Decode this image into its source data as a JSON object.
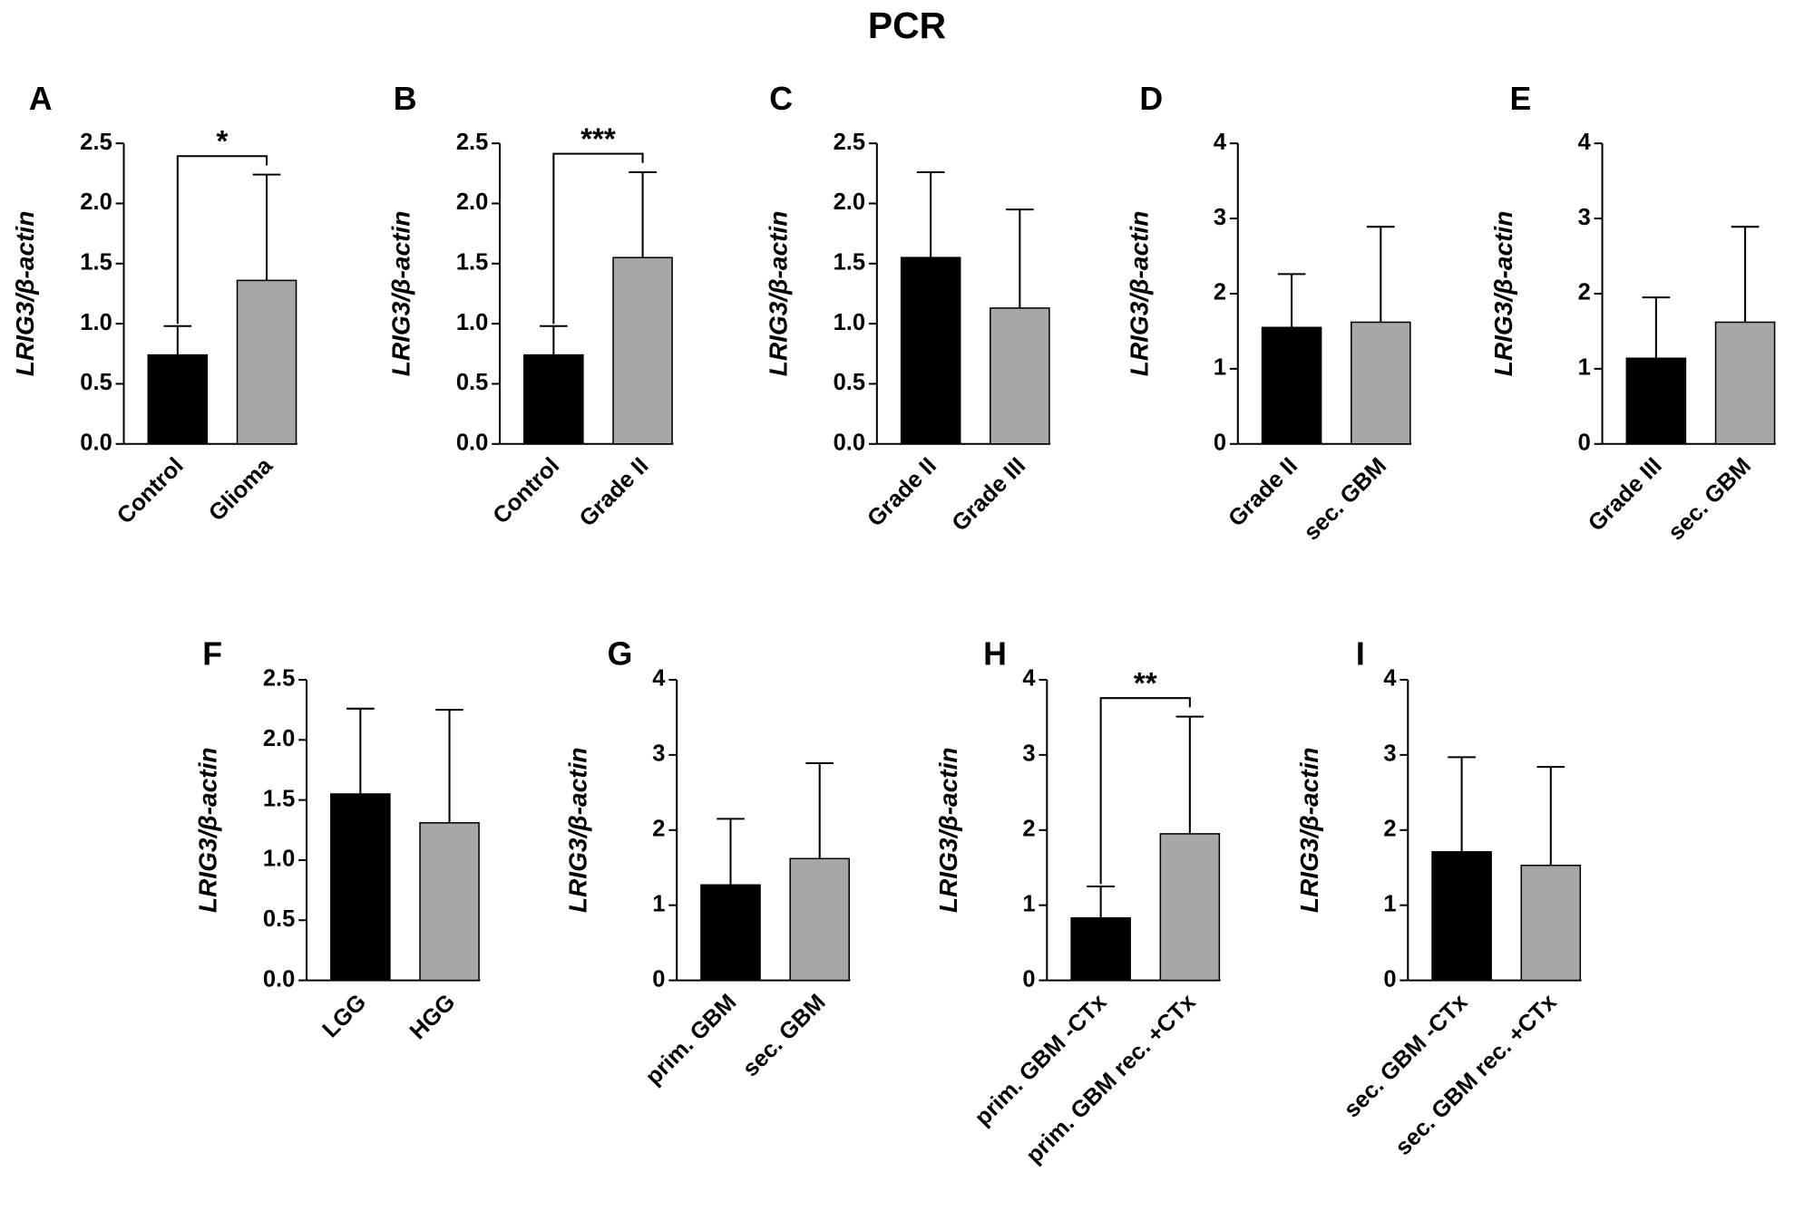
{
  "title": "PCR",
  "chart_data": [
    {
      "type": "bar",
      "panel_label": "A",
      "ylabel": "LRIG3/β-actin",
      "categories": [
        "Control",
        "Glioma"
      ],
      "values": [
        0.74,
        1.36
      ],
      "errors": [
        0.24,
        0.88
      ],
      "colors": [
        "#000000",
        "#a7a7aa"
      ],
      "ylim": [
        0,
        2.5
      ],
      "yticks": [
        {
          "value": 0,
          "label": "0.0"
        },
        0.5,
        {
          "value": 1,
          "label": "1.0"
        },
        1.5,
        {
          "value": 2,
          "label": "2.0"
        },
        2.5
      ],
      "significance": "*"
    },
    {
      "type": "bar",
      "panel_label": "B",
      "ylabel": "LRIG3/β-actin",
      "categories": [
        "Control",
        "Grade II"
      ],
      "values": [
        0.74,
        1.55
      ],
      "errors": [
        0.24,
        0.71
      ],
      "colors": [
        "#000000",
        "#a7a7aa"
      ],
      "ylim": [
        0,
        2.5
      ],
      "yticks": [
        {
          "value": 0,
          "label": "0.0"
        },
        0.5,
        {
          "value": 1,
          "label": "1.0"
        },
        1.5,
        {
          "value": 2,
          "label": "2.0"
        },
        2.5
      ],
      "significance": "***"
    },
    {
      "type": "bar",
      "panel_label": "C",
      "ylabel": "LRIG3/β-actin",
      "categories": [
        "Grade II",
        "Grade III"
      ],
      "values": [
        1.55,
        1.13
      ],
      "errors": [
        0.71,
        0.82
      ],
      "colors": [
        "#000000",
        "#a7a7aa"
      ],
      "ylim": [
        0,
        2.5
      ],
      "yticks": [
        {
          "value": 0,
          "label": "0.0"
        },
        0.5,
        {
          "value": 1,
          "label": "1.0"
        },
        1.5,
        {
          "value": 2,
          "label": "2.0"
        },
        2.5
      ]
    },
    {
      "type": "bar",
      "panel_label": "D",
      "ylabel": "LRIG3/β-actin",
      "categories": [
        "Grade II",
        "sec. GBM"
      ],
      "values": [
        1.55,
        1.62
      ],
      "errors": [
        0.71,
        1.27
      ],
      "colors": [
        "#000000",
        "#a7a7aa"
      ],
      "ylim": [
        0,
        4
      ],
      "yticks": [
        0,
        1,
        2,
        3,
        4
      ]
    },
    {
      "type": "bar",
      "panel_label": "E",
      "ylabel": "LRIG3/β-actin",
      "categories": [
        "Grade III",
        "sec. GBM"
      ],
      "values": [
        1.14,
        1.62
      ],
      "errors": [
        0.81,
        1.27
      ],
      "colors": [
        "#000000",
        "#a7a7aa"
      ],
      "ylim": [
        0,
        4
      ],
      "yticks": [
        0,
        1,
        2,
        3,
        4
      ]
    },
    {
      "type": "bar",
      "panel_label": "F",
      "ylabel": "LRIG3/β-actin",
      "categories": [
        "LGG",
        "HGG"
      ],
      "values": [
        1.55,
        1.31
      ],
      "errors": [
        0.71,
        0.94
      ],
      "colors": [
        "#000000",
        "#a7a7aa"
      ],
      "ylim": [
        0,
        2.5
      ],
      "yticks": [
        {
          "value": 0,
          "label": "0.0"
        },
        0.5,
        {
          "value": 1,
          "label": "1.0"
        },
        1.5,
        {
          "value": 2,
          "label": "2.0"
        },
        2.5
      ]
    },
    {
      "type": "bar",
      "panel_label": "G",
      "ylabel": "LRIG3/β-actin",
      "categories": [
        "prim. GBM",
        "sec. GBM"
      ],
      "values": [
        1.27,
        1.62
      ],
      "errors": [
        0.88,
        1.27
      ],
      "colors": [
        "#000000",
        "#a7a7aa"
      ],
      "ylim": [
        0,
        4
      ],
      "yticks": [
        0,
        1,
        2,
        3,
        4
      ]
    },
    {
      "type": "bar",
      "panel_label": "H",
      "ylabel": "LRIG3/β-actin",
      "categories": [
        "prim. GBM -CTx",
        "prim. GBM rec. +CTx"
      ],
      "values": [
        0.83,
        1.95
      ],
      "errors": [
        0.42,
        1.56
      ],
      "colors": [
        "#000000",
        "#a7a7aa"
      ],
      "ylim": [
        0,
        4
      ],
      "yticks": [
        0,
        1,
        2,
        3,
        4
      ],
      "significance": "**"
    },
    {
      "type": "bar",
      "panel_label": "I",
      "ylabel": "LRIG3/β-actin",
      "categories": [
        "sec. GBM -CTx",
        "sec. GBM rec. +CTx"
      ],
      "values": [
        1.71,
        1.53
      ],
      "errors": [
        1.26,
        1.31
      ],
      "colors": [
        "#000000",
        "#a7a7aa"
      ],
      "ylim": [
        0,
        4
      ],
      "yticks": [
        0,
        1,
        2,
        3,
        4
      ]
    }
  ]
}
